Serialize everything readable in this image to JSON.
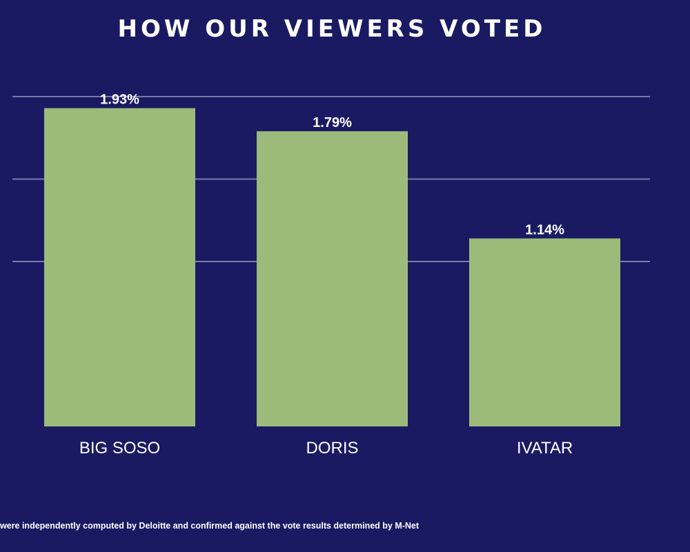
{
  "title": "HOW OUR VIEWERS VOTED",
  "footnote": "were independently computed by Deloitte and confirmed against the vote results determined by M-Net",
  "colors": {
    "background": "#1a1a63",
    "bar": "#9cbb7b",
    "grid": "#7b7ba8",
    "text": "#ffffff"
  },
  "chart_data": {
    "type": "bar",
    "title": "HOW OUR VIEWERS VOTED",
    "categories": [
      "BIG SOSO",
      "DORIS",
      "IVATAR"
    ],
    "values": [
      1.93,
      1.79,
      1.14
    ],
    "data_labels": [
      "1.93%",
      "1.79%",
      "1.14%"
    ],
    "ylim": [
      0,
      2.0
    ],
    "gridlines": [
      1.0,
      1.5,
      2.0
    ],
    "grid": true,
    "legend": "none"
  }
}
